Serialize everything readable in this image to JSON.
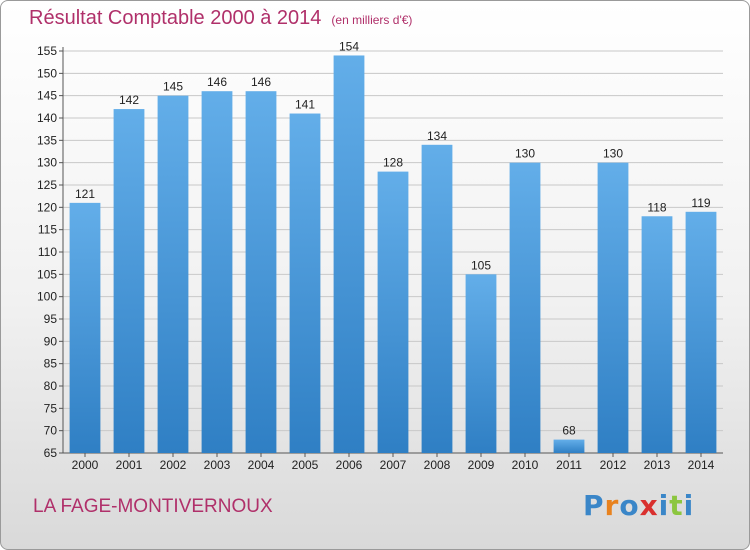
{
  "header": {
    "title": "Résultat Comptable 2000 à 2014",
    "unit": "(en milliers d'€)"
  },
  "footer": {
    "commune": "LA FAGE-MONTIVERNOUX",
    "logo": "Proxiti",
    "logo_colors": [
      "#3a86c8",
      "#e8821e",
      "#3a86c8",
      "#d9302e",
      "#3a86c8",
      "#8cc63f",
      "#3a86c8"
    ]
  },
  "colors": {
    "title": "#b0306a",
    "bar": "#3d8fd6",
    "bar_light": "#6fb3ec"
  },
  "chart_data": {
    "type": "bar",
    "title": "Résultat Comptable 2000 à 2014",
    "ylabel": "(en milliers d'€)",
    "categories": [
      "2000",
      "2001",
      "2002",
      "2003",
      "2004",
      "2005",
      "2006",
      "2007",
      "2008",
      "2009",
      "2010",
      "2011",
      "2012",
      "2013",
      "2014"
    ],
    "values": [
      121,
      142,
      145,
      146,
      146,
      141,
      154,
      128,
      134,
      105,
      130,
      68,
      130,
      118,
      119
    ],
    "ylim": [
      65,
      155
    ],
    "yticks": [
      65,
      70,
      75,
      80,
      85,
      90,
      95,
      100,
      105,
      110,
      115,
      120,
      125,
      130,
      135,
      140,
      145,
      150,
      155
    ],
    "grid": true,
    "data_labels": true
  }
}
